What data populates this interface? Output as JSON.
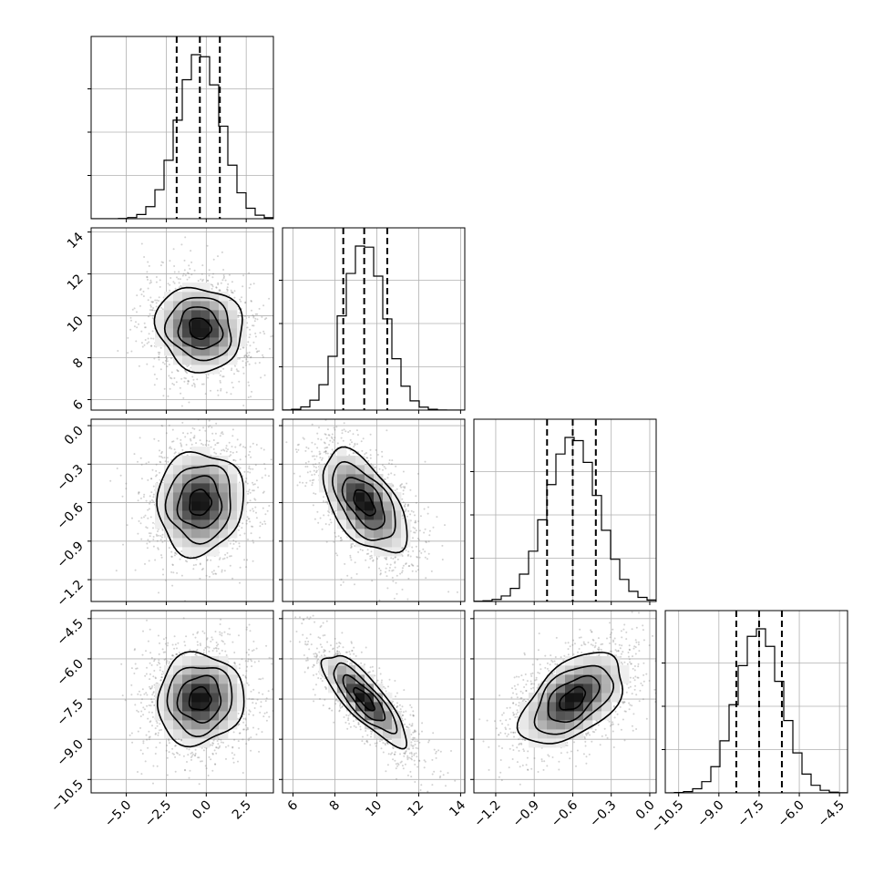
{
  "chart_data": {
    "type": "corner",
    "grid": true,
    "parameters": [
      {
        "mean": -0.4,
        "sigma": 1.35,
        "range": [
          -7.2,
          4.2
        ],
        "quantiles": [
          -1.85,
          -0.4,
          0.85
        ],
        "ticks": [
          -5.0,
          -2.5,
          0.0,
          2.5
        ],
        "tick_labels": [
          "−5.0",
          "−2.5",
          "0.0",
          "2.5"
        ]
      },
      {
        "mean": 9.4,
        "sigma": 1.0,
        "range": [
          5.5,
          14.2
        ],
        "quantiles": [
          8.4,
          9.4,
          10.5
        ],
        "ticks": [
          6,
          8,
          10,
          12,
          14
        ],
        "tick_labels": [
          "6",
          "8",
          "10",
          "12",
          "14"
        ]
      },
      {
        "mean": -0.6,
        "sigma": 0.2,
        "range": [
          -1.37,
          0.05
        ],
        "quantiles": [
          -0.8,
          -0.6,
          -0.42
        ],
        "ticks": [
          -1.2,
          -0.9,
          -0.6,
          -0.3,
          0.0
        ],
        "tick_labels": [
          "−1.2",
          "−0.9",
          "−0.6",
          "−0.3",
          "0.0"
        ]
      },
      {
        "mean": -7.5,
        "sigma": 0.85,
        "range": [
          -11.0,
          -4.2
        ],
        "quantiles": [
          -8.35,
          -7.5,
          -6.65
        ],
        "ticks": [
          -10.5,
          -9.0,
          -7.5,
          -6.0,
          -4.5
        ],
        "tick_labels": [
          "−10.5",
          "−9.0",
          "−7.5",
          "−6.0",
          "−4.5"
        ]
      }
    ],
    "correlations": [
      [
        1.0,
        -0.1,
        0.05,
        0.05
      ],
      [
        -0.1,
        1.0,
        -0.55,
        -0.82
      ],
      [
        0.05,
        -0.55,
        1.0,
        0.5
      ],
      [
        0.05,
        -0.82,
        0.5,
        1.0
      ]
    ],
    "histogram_bins": 20,
    "contour_levels_sigma": [
      0.5,
      1.0,
      1.5,
      2.0
    ]
  }
}
